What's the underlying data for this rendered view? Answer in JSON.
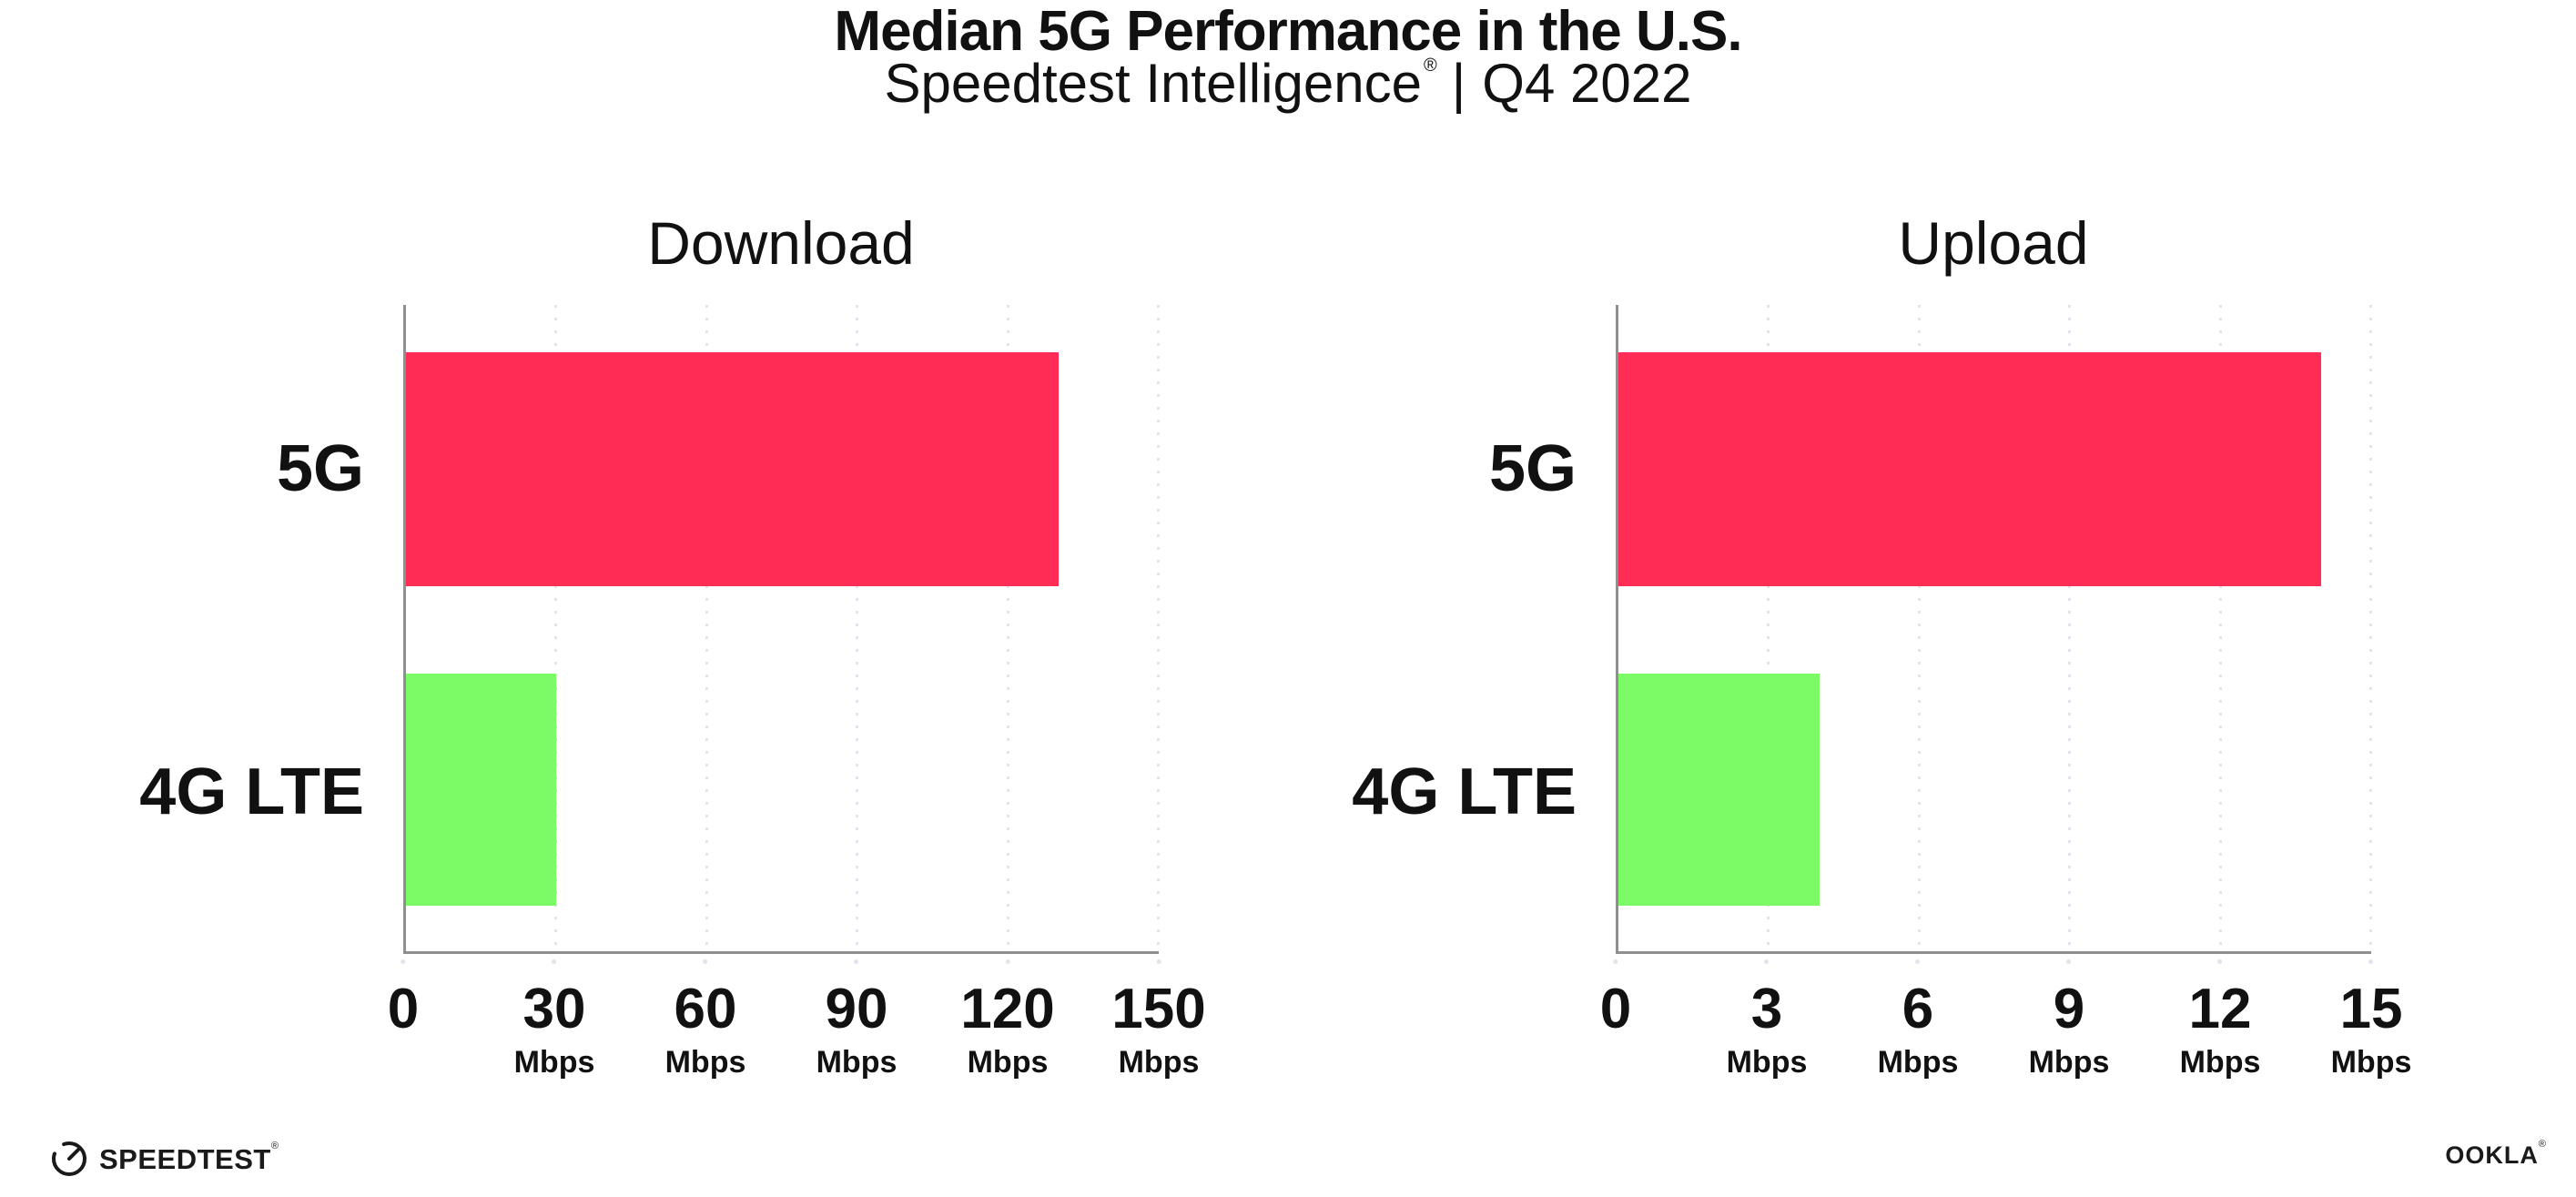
{
  "header": {
    "title": "Median 5G Performance in the U.S.",
    "subtitle_brand": "Speedtest Intelligence",
    "subtitle_reg": "®",
    "subtitle_separator": "|",
    "subtitle_period": "Q4 2022"
  },
  "colors": {
    "bg": "#ffffff",
    "bar_5g": "#FF2D55",
    "bar_4g": "#7DFB66",
    "axis": "#8f8f8f",
    "grid": "#e2e3ed",
    "text": "#111111"
  },
  "chart_data": [
    {
      "type": "bar",
      "orientation": "horizontal",
      "title": "Download",
      "categories": [
        "5G",
        "4G LTE"
      ],
      "values": [
        130,
        30
      ],
      "unit": "Mbps",
      "xlim": [
        0,
        150
      ],
      "xticks": [
        0,
        30,
        60,
        90,
        120,
        150
      ],
      "grid": "dotted-vertical",
      "legend": "none",
      "bar_colors": [
        "#FF2D55",
        "#7DFB66"
      ],
      "tick_labels": [
        {
          "num": "0",
          "unit": ""
        },
        {
          "num": "30",
          "unit": "Mbps"
        },
        {
          "num": "60",
          "unit": "Mbps"
        },
        {
          "num": "90",
          "unit": "Mbps"
        },
        {
          "num": "120",
          "unit": "Mbps"
        },
        {
          "num": "150",
          "unit": "Mbps"
        }
      ]
    },
    {
      "type": "bar",
      "orientation": "horizontal",
      "title": "Upload",
      "categories": [
        "5G",
        "4G LTE"
      ],
      "values": [
        14,
        4
      ],
      "unit": "Mbps",
      "xlim": [
        0,
        15
      ],
      "xticks": [
        0,
        3,
        6,
        9,
        12,
        15
      ],
      "grid": "dotted-vertical",
      "legend": "none",
      "bar_colors": [
        "#FF2D55",
        "#7DFB66"
      ],
      "tick_labels": [
        {
          "num": "0",
          "unit": ""
        },
        {
          "num": "3",
          "unit": "Mbps"
        },
        {
          "num": "6",
          "unit": "Mbps"
        },
        {
          "num": "9",
          "unit": "Mbps"
        },
        {
          "num": "12",
          "unit": "Mbps"
        },
        {
          "num": "15",
          "unit": "Mbps"
        }
      ]
    }
  ],
  "footer": {
    "speedtest_logo_text": "SPEEDTEST",
    "speedtest_mark": "®",
    "ookla_logo_text": "OOKLA",
    "ookla_mark": "®"
  }
}
